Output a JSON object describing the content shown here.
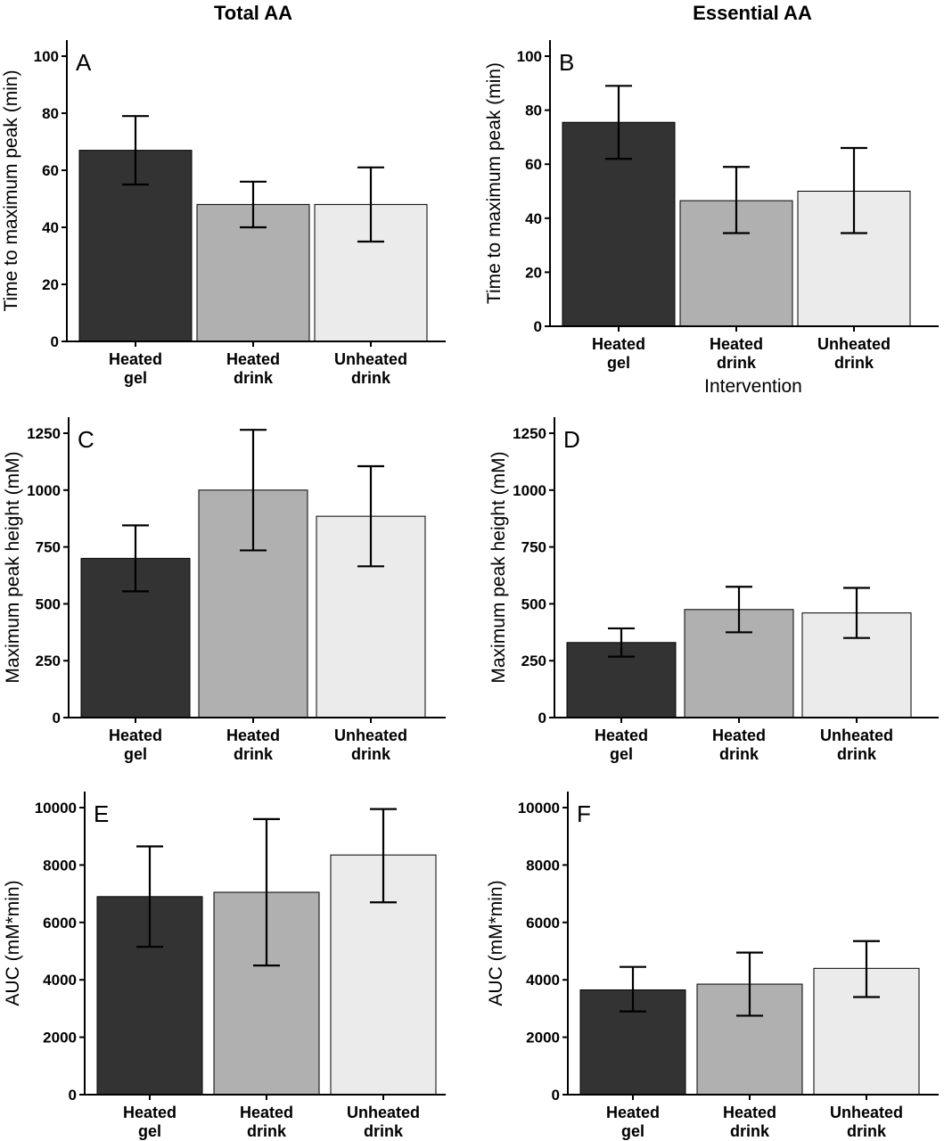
{
  "column_titles": [
    "Total AA",
    "Essential AA"
  ],
  "colors": {
    "Heated gel": "#333333",
    "Heated drink": "#b0b0b0",
    "Unheated drink": "#ebebeb"
  },
  "chart_data": [
    {
      "panel": "A",
      "type": "bar",
      "title": "Total AA",
      "ylabel": "Time to maximum peak (min)",
      "xlabel": "",
      "ylim": [
        0,
        100
      ],
      "yticks": [
        0,
        20,
        40,
        60,
        80,
        100
      ],
      "categories": [
        "Heated gel",
        "Heated drink",
        "Unheated drink"
      ],
      "values": [
        67,
        48,
        48
      ],
      "error_low": [
        55,
        40,
        35
      ],
      "error_high": [
        79,
        56,
        61
      ]
    },
    {
      "panel": "B",
      "type": "bar",
      "title": "Essential AA",
      "ylabel": "Time to maximum peak (min)",
      "xlabel": "Intervention",
      "ylim": [
        0,
        100
      ],
      "yticks": [
        0,
        20,
        40,
        60,
        80,
        100
      ],
      "categories": [
        "Heated gel",
        "Heated drink",
        "Unheated drink"
      ],
      "values": [
        75.5,
        46.5,
        50
      ],
      "error_low": [
        62,
        34.5,
        34.5
      ],
      "error_high": [
        89,
        59,
        66
      ]
    },
    {
      "panel": "C",
      "type": "bar",
      "title": "",
      "ylabel": "Maximum peak height (mM)",
      "xlabel": "",
      "ylim": [
        0,
        1250
      ],
      "yticks": [
        0,
        250,
        500,
        750,
        1000,
        1250
      ],
      "categories": [
        "Heated gel",
        "Heated drink",
        "Unheated drink"
      ],
      "values": [
        700,
        1000,
        885
      ],
      "error_low": [
        555,
        735,
        665
      ],
      "error_high": [
        845,
        1265,
        1105
      ]
    },
    {
      "panel": "D",
      "type": "bar",
      "title": "",
      "ylabel": "Maximum peak height (mM)",
      "xlabel": "",
      "ylim": [
        0,
        1250
      ],
      "yticks": [
        0,
        250,
        500,
        750,
        1000,
        1250
      ],
      "categories": [
        "Heated gel",
        "Heated drink",
        "Unheated drink"
      ],
      "values": [
        330,
        475,
        460
      ],
      "error_low": [
        268,
        375,
        350
      ],
      "error_high": [
        392,
        575,
        570
      ]
    },
    {
      "panel": "E",
      "type": "bar",
      "title": "",
      "ylabel": "AUC (mM*min)",
      "xlabel": "",
      "ylim": [
        0,
        10000
      ],
      "yticks": [
        0,
        2000,
        4000,
        6000,
        8000,
        10000
      ],
      "categories": [
        "Heated gel",
        "Heated drink",
        "Unheated drink"
      ],
      "values": [
        6900,
        7050,
        8350
      ],
      "error_low": [
        5150,
        4500,
        6700
      ],
      "error_high": [
        8650,
        9600,
        9950
      ]
    },
    {
      "panel": "F",
      "type": "bar",
      "title": "",
      "ylabel": "AUC (mM*min)",
      "xlabel": "",
      "ylim": [
        0,
        10000
      ],
      "yticks": [
        0,
        2000,
        4000,
        6000,
        8000,
        10000
      ],
      "categories": [
        "Heated gel",
        "Heated drink",
        "Unheated drink"
      ],
      "values": [
        3650,
        3850,
        4400
      ],
      "error_low": [
        2900,
        2750,
        3400
      ],
      "error_high": [
        4450,
        4950,
        5350
      ]
    }
  ]
}
